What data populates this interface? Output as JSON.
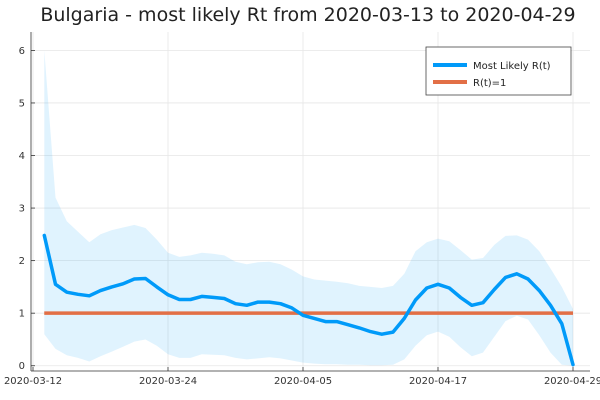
{
  "chart_data": {
    "type": "line",
    "title": "Bulgaria - most likely Rt from 2020-03-13 to 2020-04-29",
    "xlabel": "",
    "ylabel": "",
    "x_ticks": [
      "2020-03-12",
      "2020-03-24",
      "2020-04-05",
      "2020-04-17",
      "2020-04-29"
    ],
    "x_range": [
      "2020-03-12",
      "2020-04-29"
    ],
    "y_ticks": [
      0,
      1,
      2,
      3,
      4,
      5,
      6
    ],
    "y_range": [
      -0.1,
      6.35
    ],
    "grid": true,
    "legend_position": "top-right",
    "series": [
      {
        "name": "Most Likely R(t)",
        "color": "#009af9",
        "x": [
          "2020-03-13",
          "2020-03-14",
          "2020-03-15",
          "2020-03-16",
          "2020-03-17",
          "2020-03-18",
          "2020-03-19",
          "2020-03-20",
          "2020-03-21",
          "2020-03-22",
          "2020-03-23",
          "2020-03-24",
          "2020-03-25",
          "2020-03-26",
          "2020-03-27",
          "2020-03-28",
          "2020-03-29",
          "2020-03-30",
          "2020-03-31",
          "2020-04-01",
          "2020-04-02",
          "2020-04-03",
          "2020-04-04",
          "2020-04-05",
          "2020-04-06",
          "2020-04-07",
          "2020-04-08",
          "2020-04-09",
          "2020-04-10",
          "2020-04-11",
          "2020-04-12",
          "2020-04-13",
          "2020-04-14",
          "2020-04-15",
          "2020-04-16",
          "2020-04-17",
          "2020-04-18",
          "2020-04-19",
          "2020-04-20",
          "2020-04-21",
          "2020-04-22",
          "2020-04-23",
          "2020-04-24",
          "2020-04-25",
          "2020-04-26",
          "2020-04-27",
          "2020-04-28",
          "2020-04-29"
        ],
        "y": [
          2.48,
          1.55,
          1.4,
          1.36,
          1.33,
          1.43,
          1.5,
          1.56,
          1.65,
          1.66,
          1.5,
          1.35,
          1.26,
          1.26,
          1.32,
          1.3,
          1.28,
          1.18,
          1.15,
          1.21,
          1.21,
          1.18,
          1.1,
          0.96,
          0.9,
          0.84,
          0.84,
          0.78,
          0.72,
          0.65,
          0.6,
          0.64,
          0.9,
          1.25,
          1.48,
          1.55,
          1.48,
          1.3,
          1.15,
          1.2,
          1.45,
          1.68,
          1.75,
          1.65,
          1.43,
          1.15,
          0.8,
          0.02
        ],
        "band_upper": [
          6.0,
          3.2,
          2.75,
          2.55,
          2.35,
          2.5,
          2.58,
          2.63,
          2.68,
          2.62,
          2.4,
          2.15,
          2.07,
          2.1,
          2.15,
          2.13,
          2.1,
          1.98,
          1.93,
          1.97,
          1.98,
          1.93,
          1.83,
          1.7,
          1.64,
          1.62,
          1.6,
          1.57,
          1.52,
          1.5,
          1.48,
          1.52,
          1.75,
          2.18,
          2.35,
          2.42,
          2.37,
          2.2,
          2.02,
          2.05,
          2.3,
          2.47,
          2.48,
          2.4,
          2.18,
          1.85,
          1.5,
          1.08
        ],
        "band_lower": [
          0.6,
          0.32,
          0.2,
          0.15,
          0.08,
          0.18,
          0.27,
          0.36,
          0.46,
          0.5,
          0.38,
          0.22,
          0.15,
          0.15,
          0.22,
          0.21,
          0.2,
          0.15,
          0.12,
          0.14,
          0.16,
          0.14,
          0.1,
          0.06,
          0.04,
          0.03,
          0.03,
          0.02,
          0.02,
          0.01,
          0.01,
          0.02,
          0.12,
          0.38,
          0.58,
          0.65,
          0.55,
          0.35,
          0.18,
          0.25,
          0.55,
          0.85,
          0.95,
          0.88,
          0.58,
          0.25,
          0.02,
          0.0
        ]
      },
      {
        "name": "R(t)=1",
        "color": "#e26f46",
        "x": [
          "2020-03-13",
          "2020-04-29"
        ],
        "y": [
          1,
          1
        ]
      }
    ]
  }
}
